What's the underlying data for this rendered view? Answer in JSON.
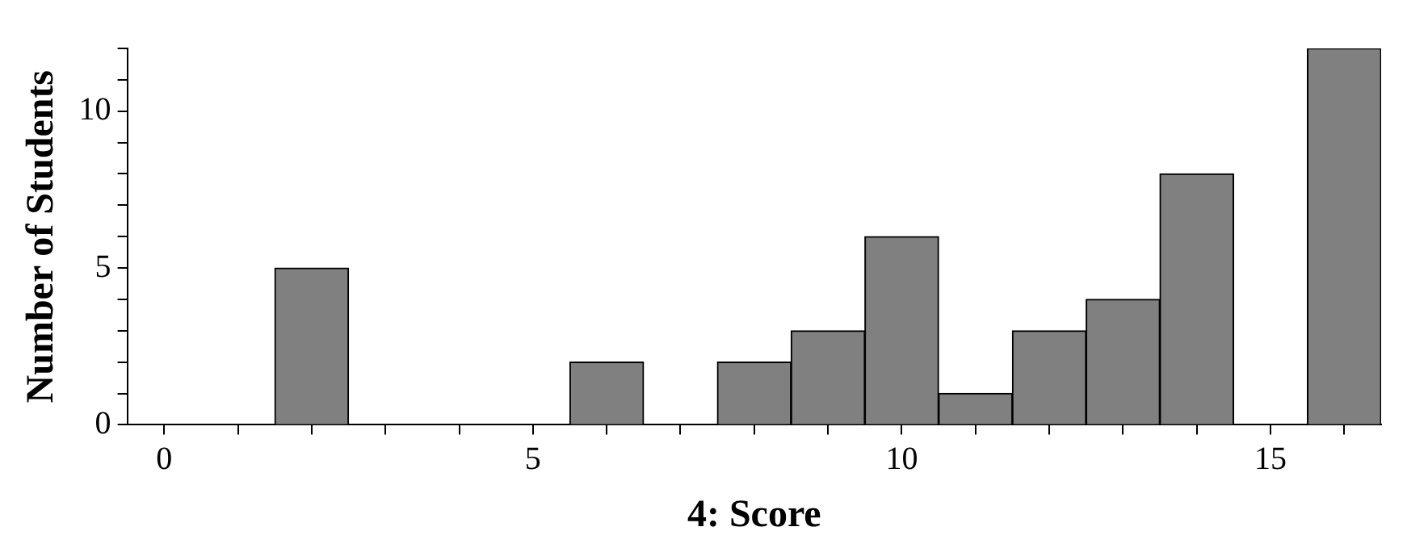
{
  "chart_data": {
    "type": "histogram",
    "xlabel": "4: Score",
    "ylabel": "Number of Students",
    "bins": [
      -0.5,
      0.5,
      1.5,
      2.5,
      3.5,
      4.5,
      5.5,
      6.5,
      7.5,
      8.5,
      9.5,
      10.5,
      11.5,
      12.5,
      13.5,
      14.5,
      15.5,
      16.5
    ],
    "values": [
      0,
      0,
      5,
      0,
      0,
      0,
      2,
      0,
      2,
      3,
      6,
      1,
      3,
      4,
      8,
      0,
      12
    ],
    "color": "#808080",
    "xlim": [
      -0.5,
      16.5
    ],
    "xticks": [
      0,
      {
        "value": 1,
        "label": null
      },
      {
        "value": 2,
        "label": null
      },
      {
        "value": 3,
        "label": null
      },
      {
        "value": 4,
        "label": null
      },
      5,
      {
        "value": 6,
        "label": null
      },
      {
        "value": 7,
        "label": null
      },
      {
        "value": 8,
        "label": null
      },
      {
        "value": 9,
        "label": null
      },
      10,
      {
        "value": 11,
        "label": null
      },
      {
        "value": 12,
        "label": null
      },
      {
        "value": 13,
        "label": null
      },
      {
        "value": 14,
        "label": null
      },
      15,
      {
        "value": 16,
        "label": null
      }
    ],
    "ylim": [
      0,
      12
    ],
    "yticks": [
      0,
      {
        "value": 1,
        "label": null
      },
      {
        "value": 2,
        "label": null
      },
      {
        "value": 3,
        "label": null
      },
      {
        "value": 4,
        "label": null
      },
      5,
      {
        "value": 6,
        "label": null
      },
      {
        "value": 7,
        "label": null
      },
      {
        "value": 8,
        "label": null
      },
      {
        "value": 9,
        "label": null
      },
      10,
      {
        "value": 11,
        "label": null
      },
      {
        "value": 12,
        "label": null
      }
    ],
    "grid": false,
    "legend": false
  }
}
